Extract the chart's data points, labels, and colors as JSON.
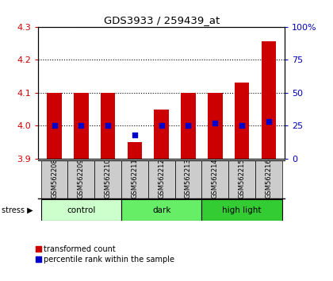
{
  "title": "GDS3933 / 259439_at",
  "samples": [
    "GSM562208",
    "GSM562209",
    "GSM562210",
    "GSM562211",
    "GSM562212",
    "GSM562213",
    "GSM562214",
    "GSM562215",
    "GSM562216"
  ],
  "transformed_count": [
    4.1,
    4.1,
    4.1,
    3.95,
    4.05,
    4.1,
    4.1,
    4.13,
    4.255
  ],
  "percentile_rank": [
    25,
    25,
    25,
    18,
    25,
    25,
    27,
    25,
    28
  ],
  "bar_bottom": 3.9,
  "ylim_left": [
    3.9,
    4.3
  ],
  "ylim_right": [
    0,
    100
  ],
  "yticks_left": [
    3.9,
    4.0,
    4.1,
    4.2,
    4.3
  ],
  "yticks_right": [
    0,
    25,
    50,
    75,
    100
  ],
  "ytick_labels_right": [
    "0",
    "25",
    "50",
    "75",
    "100%"
  ],
  "groups": [
    {
      "label": "control",
      "start": 0,
      "end": 3,
      "color": "#ccffcc"
    },
    {
      "label": "dark",
      "start": 3,
      "end": 6,
      "color": "#66ee66"
    },
    {
      "label": "high light",
      "start": 6,
      "end": 9,
      "color": "#33cc33"
    }
  ],
  "bar_color": "#cc0000",
  "blue_color": "#0000cc",
  "label_color_left": "#cc0000",
  "label_color_right": "#0000bb",
  "bar_width": 0.55,
  "stress_label": "stress",
  "legend_red": "transformed count",
  "legend_blue": "percentile rank within the sample",
  "sample_area_color": "#cccccc",
  "fig_width": 4.2,
  "fig_height": 3.54,
  "dpi": 100
}
